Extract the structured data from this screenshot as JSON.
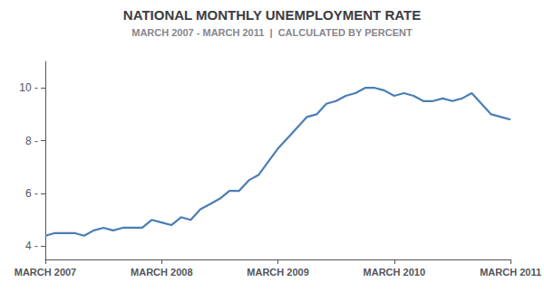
{
  "chart_data": {
    "type": "line",
    "title": "NATIONAL MONTHLY UNEMPLOYMENT RATE",
    "subtitle": "MARCH 2007 - MARCH 2011  |  CALCULATED BY PERCENT",
    "categories": [
      "MARCH 2007",
      null,
      null,
      null,
      null,
      null,
      null,
      null,
      null,
      null,
      null,
      null,
      "MARCH 2008",
      null,
      null,
      null,
      null,
      null,
      null,
      null,
      null,
      null,
      null,
      null,
      "MARCH 2009",
      null,
      null,
      null,
      null,
      null,
      null,
      null,
      null,
      null,
      null,
      null,
      "MARCH 2010",
      null,
      null,
      null,
      null,
      null,
      null,
      null,
      null,
      null,
      null,
      null,
      "MARCH 2011"
    ],
    "values": [
      4.4,
      4.5,
      4.5,
      4.5,
      4.4,
      4.6,
      4.7,
      4.6,
      4.7,
      4.7,
      4.7,
      5.0,
      4.9,
      4.8,
      5.1,
      5.0,
      5.4,
      5.6,
      5.8,
      6.1,
      6.1,
      6.5,
      6.7,
      7.2,
      7.7,
      8.1,
      8.5,
      8.9,
      9.0,
      9.4,
      9.5,
      9.7,
      9.8,
      10.0,
      10.0,
      9.9,
      9.7,
      9.8,
      9.7,
      9.5,
      9.5,
      9.6,
      9.5,
      9.6,
      9.8,
      9.4,
      9.0,
      8.9,
      8.8
    ],
    "color": "#4a7db5",
    "ylim": [
      3.5,
      11.0
    ],
    "yticks": [
      {
        "value": 4,
        "label": "4 -"
      },
      {
        "value": 6,
        "label": "6 -"
      },
      {
        "value": 8,
        "label": "8 -"
      },
      {
        "value": 10,
        "label": "10 -"
      }
    ],
    "grid": false
  }
}
